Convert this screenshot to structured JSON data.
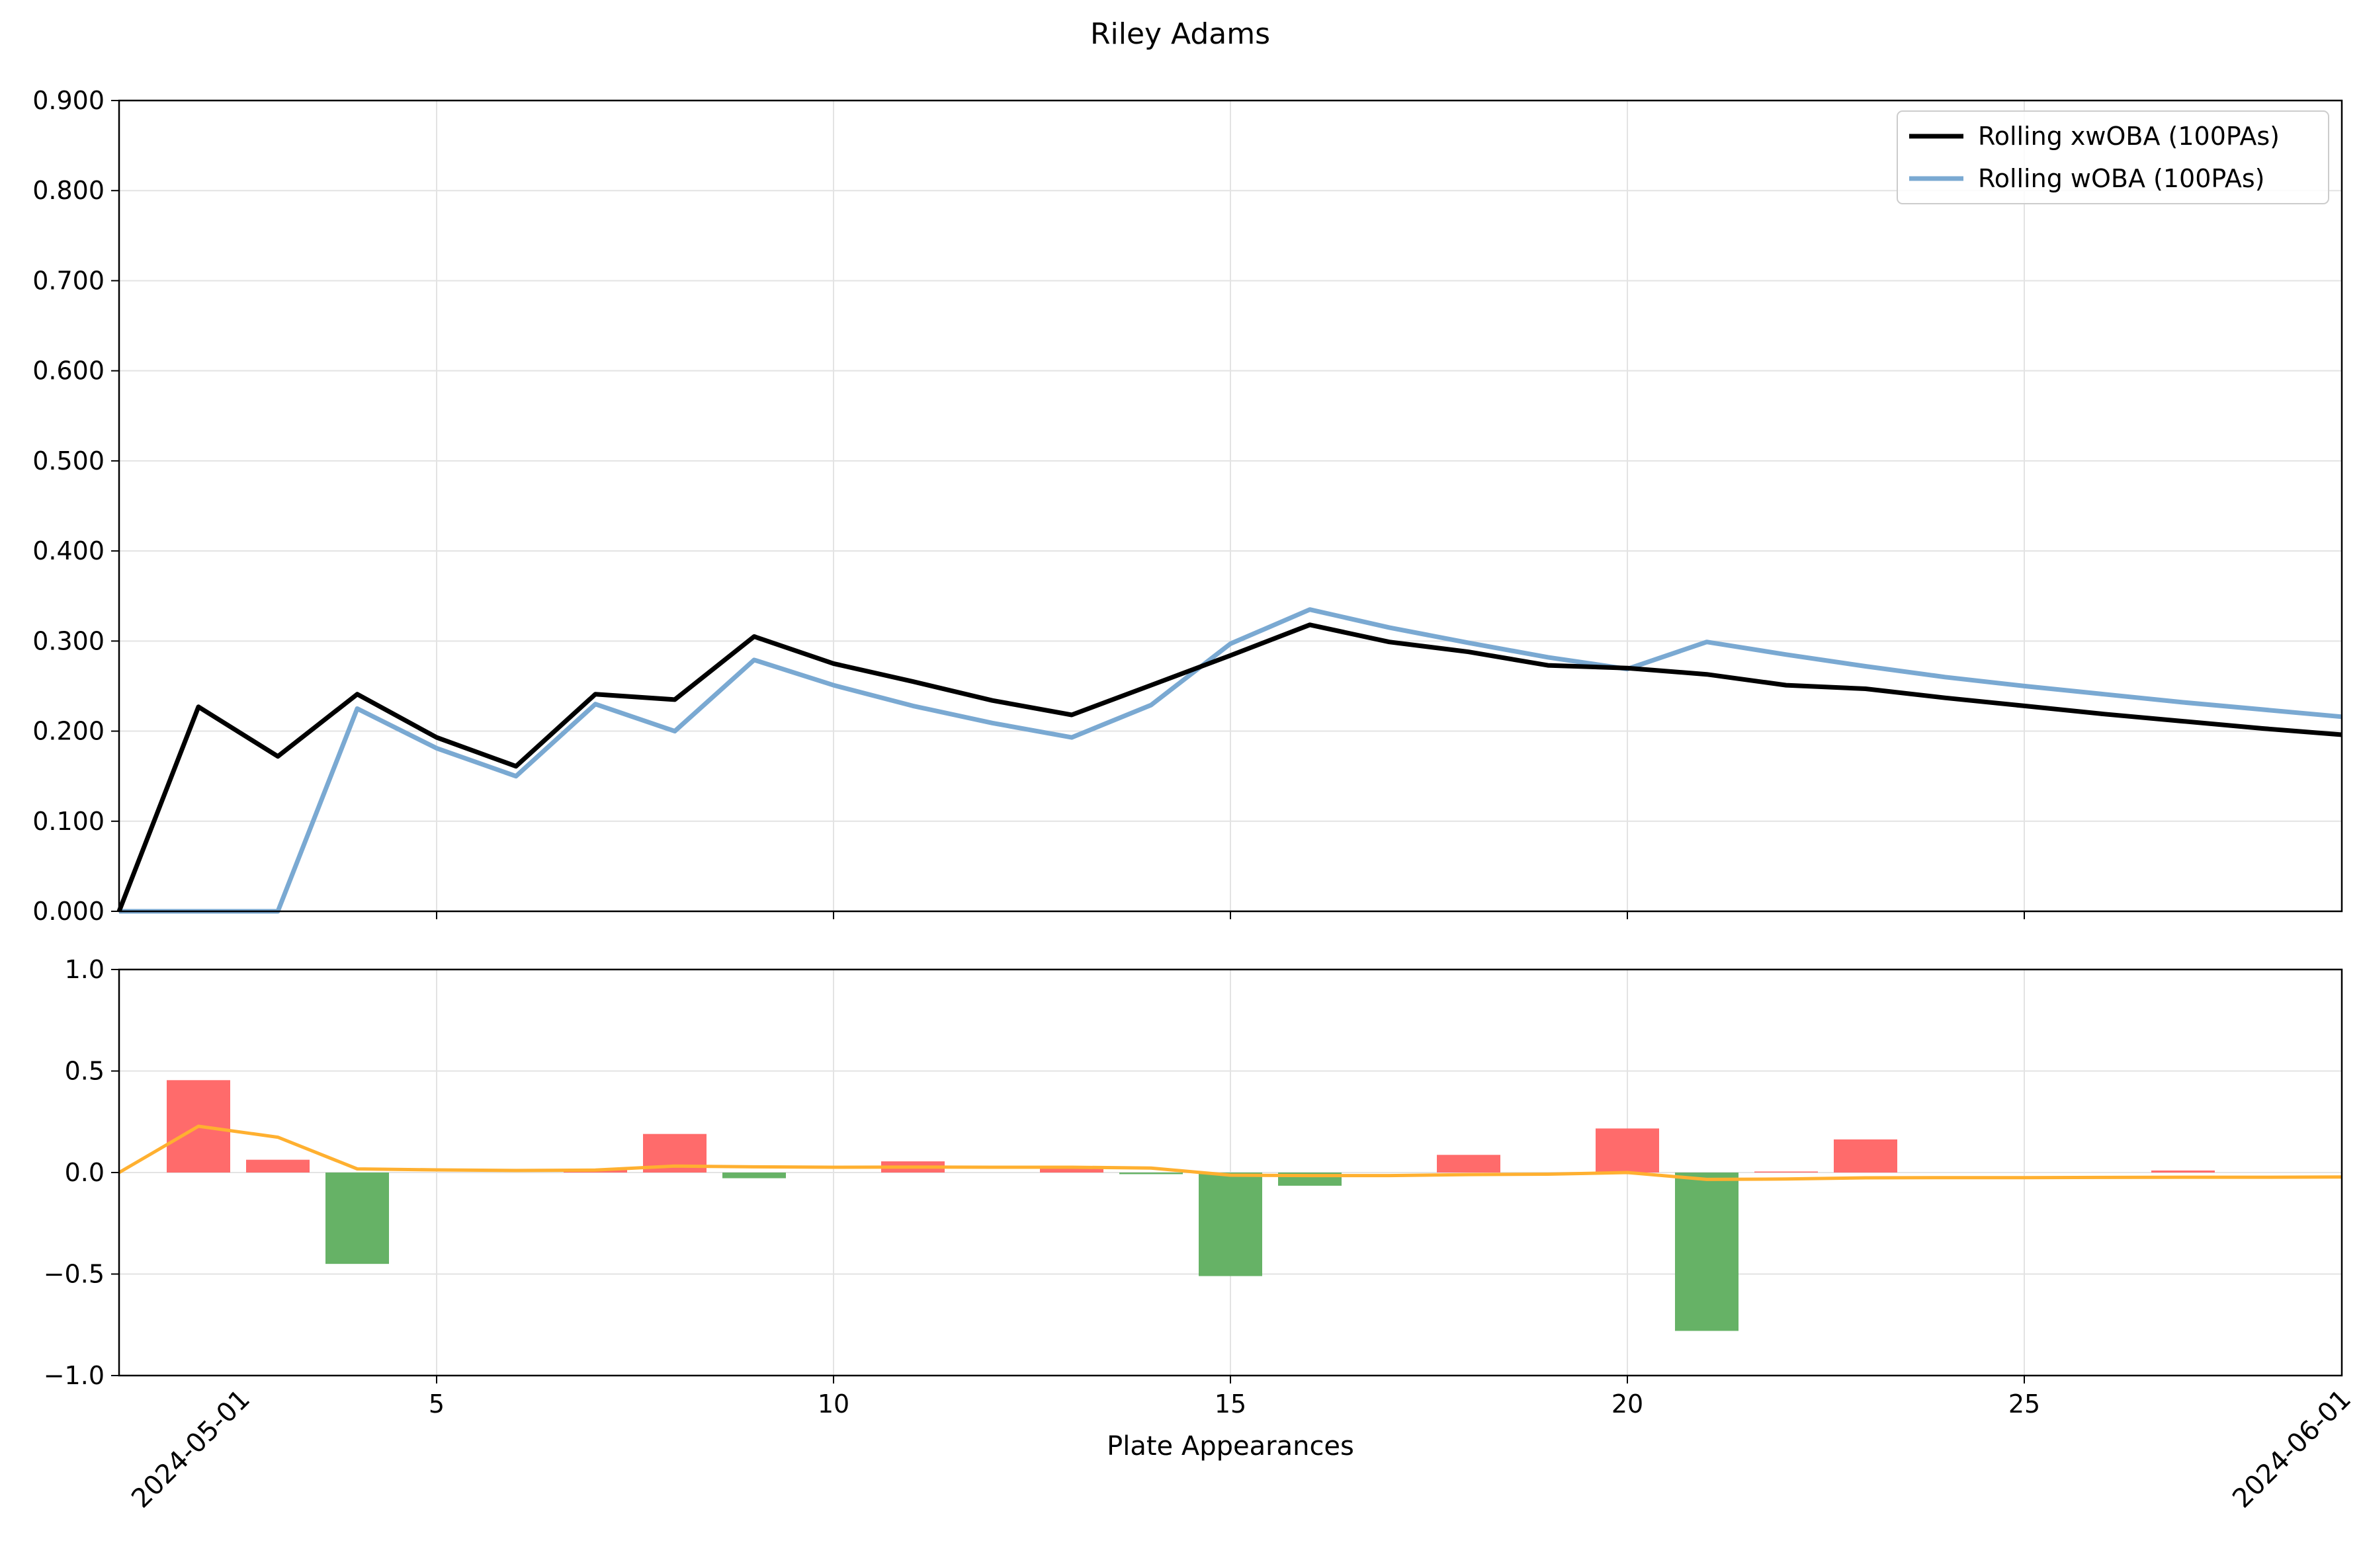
{
  "chart_data": {
    "title": "Riley Adams",
    "xlabel": "Plate Appearances",
    "date_labels": [
      "2024-05-01",
      "2024-06-01"
    ],
    "x": [
      1,
      2,
      3,
      4,
      5,
      6,
      7,
      8,
      9,
      10,
      11,
      12,
      13,
      14,
      15,
      16,
      17,
      18,
      19,
      20,
      21,
      22,
      23,
      24,
      25,
      26,
      27,
      28,
      29
    ],
    "xlim": [
      1,
      29
    ],
    "xticks": [
      "5",
      "10",
      "15",
      "20",
      "25"
    ],
    "top_panel": {
      "type": "line",
      "ylim": [
        0,
        0.9
      ],
      "yticks": [
        "0.000",
        "0.100",
        "0.200",
        "0.300",
        "0.400",
        "0.500",
        "0.600",
        "0.700",
        "0.800",
        "0.900"
      ],
      "grid": true,
      "legend_position": "top-right",
      "series": [
        {
          "name": "Rolling xwOBA (100PAs)",
          "color": "#000000",
          "values": [
            0.0,
            0.227,
            0.172,
            0.241,
            0.193,
            0.161,
            0.241,
            0.235,
            0.305,
            0.275,
            0.255,
            0.234,
            0.218,
            0.251,
            0.284,
            0.318,
            0.299,
            0.288,
            0.273,
            0.27,
            0.263,
            0.251,
            0.247,
            0.237,
            0.228,
            0.219,
            0.211,
            0.203,
            0.196
          ]
        },
        {
          "name": "Rolling wOBA (100PAs)",
          "color": "#7aa9d2",
          "values": [
            0.0,
            0.0,
            0.0,
            0.225,
            0.181,
            0.15,
            0.23,
            0.2,
            0.279,
            0.251,
            0.228,
            0.209,
            0.193,
            0.229,
            0.297,
            0.335,
            0.315,
            0.298,
            0.282,
            0.269,
            0.299,
            0.285,
            0.272,
            0.26,
            0.25,
            0.241,
            0.232,
            0.224,
            0.216
          ]
        }
      ]
    },
    "bottom_panel": {
      "type": "bar",
      "ylim": [
        -1.0,
        1.0
      ],
      "yticks": [
        "1.0",
        "0.5",
        "0.0",
        "−0.5",
        "−1.0"
      ],
      "grid": true,
      "positive_color": "#ff6b6b",
      "negative_color": "#66b266",
      "line_color": "#ffb030",
      "bars": [
        0,
        0.455,
        0.063,
        -0.45,
        0,
        0,
        0.018,
        0.19,
        -0.028,
        0,
        0.055,
        0,
        0.02,
        -0.008,
        -0.51,
        -0.065,
        0,
        0.087,
        0,
        0.217,
        -0.78,
        0.005,
        0.163,
        0,
        0,
        0,
        0.01,
        0,
        0
      ],
      "line": [
        0.0,
        0.228,
        0.174,
        0.018,
        0.013,
        0.01,
        0.012,
        0.032,
        0.028,
        0.026,
        0.027,
        0.026,
        0.026,
        0.022,
        -0.013,
        -0.015,
        -0.015,
        -0.01,
        -0.008,
        0.0,
        -0.034,
        -0.032,
        -0.026,
        -0.025,
        -0.025,
        -0.024,
        -0.023,
        -0.023,
        -0.022
      ]
    }
  }
}
